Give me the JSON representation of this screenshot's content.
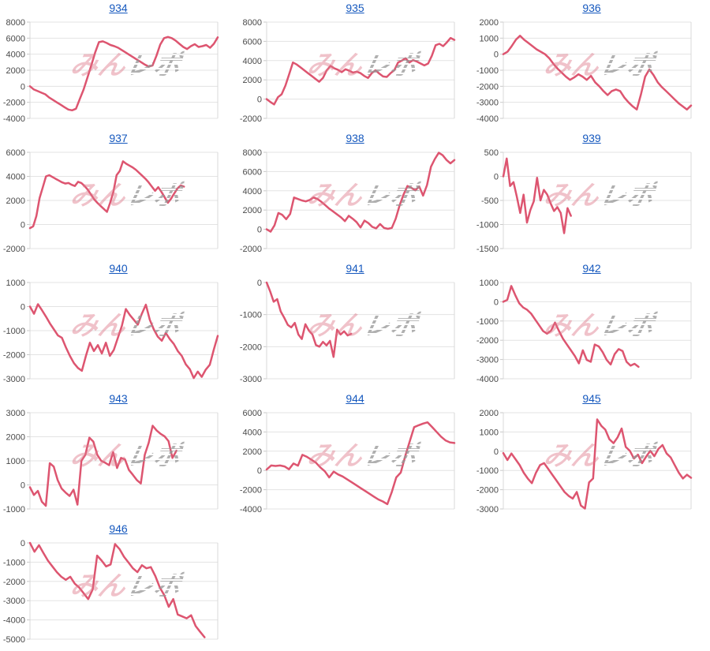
{
  "page": {
    "background": "#ffffff"
  },
  "style": {
    "line_color": "#dd5570",
    "grid_color": "#e3e3e3",
    "axis_color": "#d8d8d8",
    "title_color": "#1558be",
    "tick_label_color": "#4a4a4a",
    "watermark_pink": "#de788a",
    "watermark_gray": "#969696"
  },
  "watermark": {
    "text_pink": "みん",
    "text_gray": "レポ"
  },
  "chart_data": [
    {
      "type": "line",
      "title": "934",
      "ylim": [
        -4000,
        8000
      ],
      "ystep": 2000,
      "span": 1.0,
      "values": [
        0,
        -400,
        -600,
        -800,
        -1000,
        -1400,
        -1700,
        -2000,
        -2300,
        -2600,
        -2900,
        -3000,
        -2800,
        -1600,
        -400,
        1100,
        2600,
        4200,
        5500,
        5600,
        5400,
        5150,
        5000,
        4800,
        4500,
        4200,
        3900,
        3600,
        3300,
        3000,
        2700,
        2450,
        2600,
        3800,
        5200,
        6000,
        6150,
        6000,
        5700,
        5300,
        4900,
        4650,
        5000,
        5250,
        4900,
        5000,
        5150,
        4800,
        5300,
        6100
      ]
    },
    {
      "type": "line",
      "title": "935",
      "ylim": [
        -2000,
        8000
      ],
      "ystep": 2000,
      "span": 1.0,
      "values": [
        0,
        -300,
        -550,
        200,
        500,
        1400,
        2600,
        3800,
        3600,
        3300,
        3000,
        2700,
        2400,
        2100,
        1800,
        2200,
        3000,
        3450,
        3200,
        3050,
        2800,
        3100,
        2950,
        2750,
        2850,
        2700,
        2400,
        2200,
        2700,
        3000,
        2650,
        2350,
        2300,
        2700,
        3000,
        3800,
        4000,
        4250,
        3800,
        4050,
        3900,
        3700,
        3500,
        3700,
        4500,
        5600,
        5750,
        5500,
        5900,
        6350,
        6150
      ]
    },
    {
      "type": "line",
      "title": "936",
      "ylim": [
        -4000,
        2000
      ],
      "ystep": 1000,
      "span": 1.0,
      "values": [
        0,
        150,
        500,
        900,
        1150,
        900,
        700,
        500,
        300,
        150,
        0,
        -250,
        -600,
        -900,
        -1150,
        -1400,
        -1600,
        -1450,
        -1250,
        -1400,
        -1600,
        -1350,
        -1750,
        -2000,
        -2300,
        -2550,
        -2300,
        -2200,
        -2300,
        -2700,
        -3000,
        -3250,
        -3450,
        -2500,
        -1400,
        -950,
        -1300,
        -1750,
        -2050,
        -2300,
        -2550,
        -2800,
        -3050,
        -3250,
        -3450,
        -3200
      ]
    },
    {
      "type": "line",
      "title": "937",
      "ylim": [
        -2000,
        6000
      ],
      "ystep": 2000,
      "span": 0.82,
      "values": [
        -300,
        -150,
        700,
        2200,
        3100,
        4000,
        4100,
        3950,
        3800,
        3650,
        3500,
        3400,
        3450,
        3300,
        3200,
        3550,
        3450,
        3200,
        2900,
        2500,
        2100,
        1800,
        1550,
        1300,
        1050,
        1800,
        2700,
        4100,
        4450,
        5250,
        5050,
        4900,
        4750,
        4550,
        4300,
        4050,
        3800,
        3500,
        3150,
        2800,
        3100,
        2700,
        2250,
        1800,
        2150,
        2600,
        3000,
        3250,
        3150
      ]
    },
    {
      "type": "line",
      "title": "938",
      "ylim": [
        -2000,
        8000
      ],
      "ystep": 2000,
      "span": 1.0,
      "values": [
        0,
        -250,
        400,
        1700,
        1500,
        1050,
        1600,
        3300,
        3150,
        3000,
        2900,
        3050,
        3300,
        3150,
        2850,
        2500,
        2150,
        1850,
        1550,
        1250,
        850,
        1400,
        1100,
        750,
        200,
        900,
        650,
        250,
        100,
        550,
        150,
        50,
        150,
        1100,
        2500,
        3600,
        4500,
        4300,
        4050,
        4450,
        3500,
        4600,
        6500,
        7300,
        7950,
        7700,
        7200,
        6850,
        7200
      ]
    },
    {
      "type": "line",
      "title": "939",
      "ylim": [
        -1500,
        500
      ],
      "ystep": 500,
      "span": 0.36,
      "values": [
        0,
        370,
        -200,
        -120,
        -420,
        -760,
        -380,
        -960,
        -700,
        -520,
        -30,
        -500,
        -280,
        -380,
        -560,
        -720,
        -640,
        -760,
        -1180,
        -660,
        -820
      ]
    },
    {
      "type": "line",
      "title": "940",
      "ylim": [
        -3000,
        1000
      ],
      "ystep": 1000,
      "span": 1.0,
      "values": [
        0,
        -300,
        100,
        -150,
        -420,
        -700,
        -950,
        -1200,
        -1300,
        -1700,
        -2050,
        -2350,
        -2550,
        -2670,
        -2050,
        -1500,
        -1850,
        -1600,
        -1950,
        -1500,
        -2050,
        -1800,
        -1300,
        -800,
        -100,
        -350,
        -550,
        -750,
        -300,
        80,
        -550,
        -950,
        -1250,
        -1420,
        -1100,
        -1350,
        -1550,
        -1850,
        -2050,
        -2400,
        -2600,
        -2970,
        -2700,
        -2920,
        -2620,
        -2420,
        -1800,
        -1220
      ]
    },
    {
      "type": "line",
      "title": "941",
      "ylim": [
        -3000,
        0
      ],
      "ystep": 1000,
      "span": 0.45,
      "values": [
        0,
        -280,
        -600,
        -520,
        -900,
        -1100,
        -1320,
        -1400,
        -1260,
        -1620,
        -1760,
        -1300,
        -1500,
        -1620,
        -1950,
        -2000,
        -1850,
        -1960,
        -1820,
        -2320,
        -1470,
        -1620,
        -1520,
        -1650,
        -1600
      ]
    },
    {
      "type": "line",
      "title": "942",
      "ylim": [
        -4000,
        1000
      ],
      "ystep": 1000,
      "span": 0.72,
      "values": [
        0,
        100,
        820,
        350,
        -80,
        -300,
        -420,
        -620,
        -920,
        -1220,
        -1520,
        -1660,
        -1500,
        -1080,
        -1520,
        -1920,
        -2220,
        -2520,
        -2820,
        -3200,
        -2520,
        -3020,
        -3120,
        -2220,
        -2320,
        -2620,
        -3020,
        -3260,
        -2720,
        -2460,
        -2560,
        -3120,
        -3320,
        -3220,
        -3380
      ]
    },
    {
      "type": "line",
      "title": "943",
      "ylim": [
        -1000,
        3000
      ],
      "ystep": 1000,
      "span": 0.78,
      "values": [
        -100,
        -420,
        -250,
        -700,
        -870,
        900,
        760,
        200,
        -150,
        -320,
        -460,
        -200,
        -820,
        1000,
        1250,
        1960,
        1800,
        1250,
        1000,
        920,
        820,
        1360,
        700,
        1120,
        1060,
        620,
        420,
        200,
        60,
        1250,
        1750,
        2460,
        2260,
        2120,
        2020,
        1820,
        1120,
        1420
      ]
    },
    {
      "type": "line",
      "title": "944",
      "ylim": [
        -4000,
        6000
      ],
      "ystep": 2000,
      "span": 1.0,
      "values": [
        100,
        520,
        470,
        520,
        420,
        120,
        720,
        500,
        1620,
        1420,
        1120,
        820,
        320,
        -80,
        -720,
        -120,
        -420,
        -620,
        -920,
        -1220,
        -1520,
        -1820,
        -2120,
        -2420,
        -2720,
        -3020,
        -3220,
        -3500,
        -2220,
        -720,
        -220,
        1500,
        3000,
        4500,
        4700,
        4870,
        5000,
        4520,
        4020,
        3520,
        3120,
        2920,
        2850
      ]
    },
    {
      "type": "line",
      "title": "945",
      "ylim": [
        -3000,
        2000
      ],
      "ystep": 1000,
      "span": 1.0,
      "values": [
        -100,
        -460,
        -120,
        -420,
        -720,
        -1120,
        -1420,
        -1660,
        -1120,
        -720,
        -620,
        -920,
        -1220,
        -1520,
        -1820,
        -2120,
        -2320,
        -2460,
        -2120,
        -2820,
        -2980,
        -1620,
        -1420,
        1650,
        1320,
        1120,
        620,
        420,
        720,
        1180,
        220,
        20,
        -380,
        -180,
        -620,
        -280,
        20,
        -260,
        120,
        320,
        -120,
        -320,
        -720,
        -1120,
        -1420,
        -1220,
        -1380
      ]
    },
    {
      "type": "line",
      "title": "946",
      "ylim": [
        -5000,
        0
      ],
      "ystep": 1000,
      "span": 0.93,
      "values": [
        0,
        -460,
        -120,
        -520,
        -920,
        -1220,
        -1520,
        -1760,
        -1920,
        -1760,
        -2120,
        -2320,
        -2620,
        -2920,
        -2420,
        -660,
        -920,
        -1220,
        -1120,
        -60,
        -320,
        -720,
        -1020,
        -1320,
        -1520,
        -1160,
        -1320,
        -1260,
        -1720,
        -2320,
        -2720,
        -3320,
        -2920,
        -3720,
        -3820,
        -3920,
        -3760,
        -4320,
        -4620,
        -4900
      ]
    }
  ]
}
